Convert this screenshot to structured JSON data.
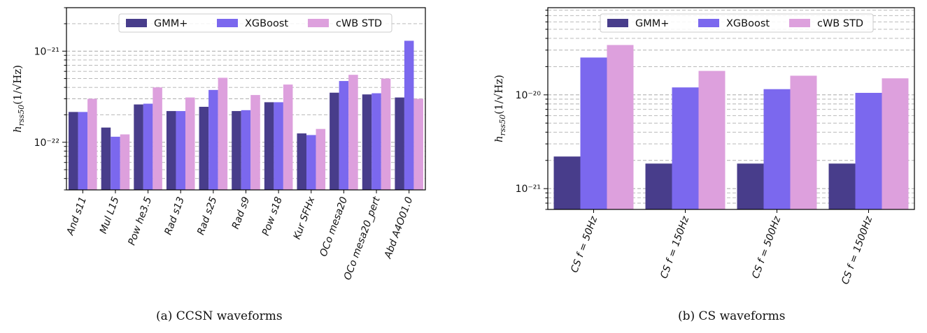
{
  "chart_data": [
    {
      "type": "bar",
      "caption": "(a) CCSN waveforms",
      "ylabel": "h_{rss50}(1/√Hz)",
      "ylabel_parts": {
        "symbol": "h",
        "subscript": "rss50",
        "unit": "(1/√Hz)"
      },
      "yscale": "log",
      "ylim": [
        3e-23,
        3e-21
      ],
      "ytick_labels": [
        {
          "value": 1e-22,
          "label": "10⁻²²"
        },
        {
          "value": 1e-21,
          "label": "10⁻²¹"
        }
      ],
      "grid": "y, major and minor, dashed",
      "legend": "top-center",
      "categories": [
        "And s11",
        "Mul L15",
        "Pow he3.5",
        "Rad s13",
        "Rad s25",
        "Rad s9",
        "Pow s18",
        "Kur SFHx",
        "OCo mesa20",
        "OCo mesa20_pert",
        "Abd A4O01.0"
      ],
      "series": [
        {
          "name": "GMM+",
          "color": "#483d8b",
          "values": [
            2.15e-22,
            1.45e-22,
            2.6e-22,
            2.2e-22,
            2.45e-22,
            2.2e-22,
            2.75e-22,
            1.25e-22,
            3.5e-22,
            3.35e-22,
            3.1e-22
          ]
        },
        {
          "name": "XGBoost",
          "color": "#7b68ee",
          "values": [
            2.15e-22,
            1.15e-22,
            2.65e-22,
            2.2e-22,
            3.75e-22,
            2.25e-22,
            2.75e-22,
            1.2e-22,
            4.7e-22,
            3.45e-22,
            1.3e-21
          ]
        },
        {
          "name": "cWB STD",
          "color": "#dda0dd",
          "values": [
            3e-22,
            1.22e-22,
            4e-22,
            3.1e-22,
            5.1e-22,
            3.3e-22,
            4.3e-22,
            1.4e-22,
            5.5e-22,
            5e-22,
            3e-22
          ]
        }
      ]
    },
    {
      "type": "bar",
      "caption": "(b) CS waveforms",
      "ylabel": "h_{rss50}(1/√Hz)",
      "ylabel_parts": {
        "symbol": "h",
        "subscript": "rss50",
        "unit": "(1/√Hz)"
      },
      "yscale": "log",
      "ylim": [
        6e-22,
        8.5e-20
      ],
      "ytick_labels": [
        {
          "value": 1e-21,
          "label": "10⁻²¹"
        },
        {
          "value": 1e-20,
          "label": "10⁻²⁰"
        }
      ],
      "grid": "y, major and minor, dashed",
      "legend": "top-center",
      "categories": [
        "CS f = 50Hz",
        "CS f = 150Hz",
        "CS f = 500Hz",
        "CS f = 1500Hz"
      ],
      "series": [
        {
          "name": "GMM+",
          "color": "#483d8b",
          "values": [
            2.2e-21,
            1.85e-21,
            1.85e-21,
            1.85e-21
          ]
        },
        {
          "name": "XGBoost",
          "color": "#7b68ee",
          "values": [
            2.5e-20,
            1.2e-20,
            1.15e-20,
            1.05e-20
          ]
        },
        {
          "name": "cWB STD",
          "color": "#dda0dd",
          "values": [
            3.4e-20,
            1.8e-20,
            1.6e-20,
            1.5e-20
          ]
        }
      ]
    }
  ]
}
